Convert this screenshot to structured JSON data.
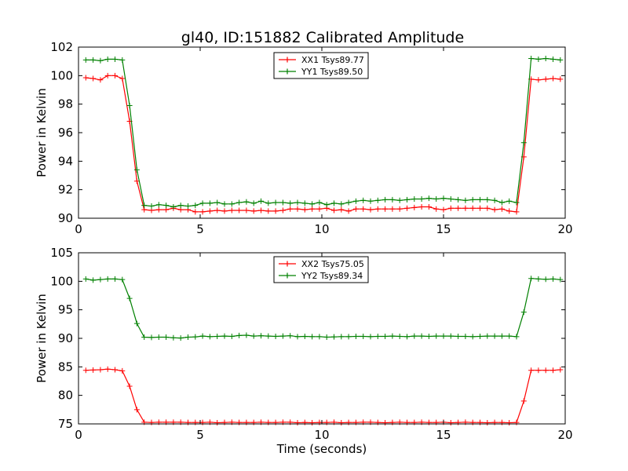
{
  "figure": {
    "title": "gl40, ID:151882 Calibrated Amplitude"
  },
  "chart_data": [
    {
      "type": "line",
      "title": "gl40, ID:151882 Calibrated Amplitude",
      "xlabel": "",
      "ylabel": "Power in Kelvin",
      "xlim": [
        0,
        20
      ],
      "ylim": [
        90,
        102
      ],
      "xticks": [
        "0",
        "5",
        "10",
        "15",
        "20"
      ],
      "yticks": [
        "90",
        "92",
        "94",
        "96",
        "98",
        "100",
        "102"
      ],
      "legend_position": "top-center",
      "x": [
        0.3,
        0.6,
        0.9,
        1.2,
        1.5,
        1.8,
        2.1,
        2.4,
        2.7,
        3.0,
        3.3,
        3.6,
        3.9,
        4.2,
        4.5,
        4.8,
        5.1,
        5.4,
        5.7,
        6.0,
        6.3,
        6.6,
        6.9,
        7.2,
        7.5,
        7.8,
        8.1,
        8.4,
        8.7,
        9.0,
        9.3,
        9.6,
        9.9,
        10.2,
        10.5,
        10.8,
        11.1,
        11.4,
        11.7,
        12.0,
        12.3,
        12.6,
        12.9,
        13.2,
        13.5,
        13.8,
        14.1,
        14.4,
        14.7,
        15.0,
        15.3,
        15.6,
        15.9,
        16.2,
        16.5,
        16.8,
        17.1,
        17.4,
        17.7,
        18.0,
        18.3,
        18.6,
        18.9,
        19.2,
        19.5,
        19.8
      ],
      "series": [
        {
          "name": "XX1 Tsys89.77",
          "color": "#ff0000",
          "values": [
            99.85,
            99.8,
            99.7,
            100.0,
            100.0,
            99.8,
            96.8,
            92.6,
            90.6,
            90.55,
            90.6,
            90.6,
            90.7,
            90.6,
            90.6,
            90.45,
            90.45,
            90.5,
            90.55,
            90.5,
            90.55,
            90.55,
            90.55,
            90.5,
            90.55,
            90.5,
            90.5,
            90.55,
            90.65,
            90.65,
            90.6,
            90.65,
            90.65,
            90.7,
            90.55,
            90.6,
            90.5,
            90.65,
            90.65,
            90.6,
            90.65,
            90.65,
            90.65,
            90.65,
            90.7,
            90.75,
            90.8,
            90.8,
            90.65,
            90.6,
            90.7,
            90.7,
            90.7,
            90.7,
            90.7,
            90.7,
            90.6,
            90.65,
            90.5,
            90.45,
            94.3,
            99.75,
            99.7,
            99.75,
            99.8,
            99.75
          ]
        },
        {
          "name": "YY1 Tsys89.50",
          "color": "#008000",
          "values": [
            101.1,
            101.1,
            101.05,
            101.15,
            101.15,
            101.1,
            97.9,
            93.4,
            90.9,
            90.85,
            90.95,
            90.9,
            90.8,
            90.9,
            90.85,
            90.9,
            91.05,
            91.05,
            91.1,
            91.0,
            91.0,
            91.1,
            91.15,
            91.05,
            91.2,
            91.05,
            91.1,
            91.1,
            91.05,
            91.1,
            91.05,
            91.0,
            91.1,
            90.95,
            91.05,
            91.0,
            91.1,
            91.2,
            91.25,
            91.2,
            91.25,
            91.3,
            91.3,
            91.25,
            91.3,
            91.35,
            91.35,
            91.4,
            91.35,
            91.4,
            91.35,
            91.3,
            91.25,
            91.3,
            91.3,
            91.3,
            91.25,
            91.1,
            91.2,
            91.1,
            95.3,
            101.2,
            101.15,
            101.2,
            101.15,
            101.1
          ]
        }
      ]
    },
    {
      "type": "line",
      "title": "",
      "xlabel": "Time (seconds)",
      "ylabel": "Power in Kelvin",
      "xlim": [
        0,
        20
      ],
      "ylim": [
        75,
        105
      ],
      "xticks": [
        "0",
        "5",
        "10",
        "15",
        "20"
      ],
      "yticks": [
        "75",
        "80",
        "85",
        "90",
        "95",
        "100",
        "105"
      ],
      "legend_position": "top-center",
      "x": [
        0.3,
        0.6,
        0.9,
        1.2,
        1.5,
        1.8,
        2.1,
        2.4,
        2.7,
        3.0,
        3.3,
        3.6,
        3.9,
        4.2,
        4.5,
        4.8,
        5.1,
        5.4,
        5.7,
        6.0,
        6.3,
        6.6,
        6.9,
        7.2,
        7.5,
        7.8,
        8.1,
        8.4,
        8.7,
        9.0,
        9.3,
        9.6,
        9.9,
        10.2,
        10.5,
        10.8,
        11.1,
        11.4,
        11.7,
        12.0,
        12.3,
        12.6,
        12.9,
        13.2,
        13.5,
        13.8,
        14.1,
        14.4,
        14.7,
        15.0,
        15.3,
        15.6,
        15.9,
        16.2,
        16.5,
        16.8,
        17.1,
        17.4,
        17.7,
        18.0,
        18.3,
        18.6,
        18.9,
        19.2,
        19.5,
        19.8
      ],
      "series": [
        {
          "name": "XX2 Tsys75.05",
          "color": "#ff0000",
          "values": [
            84.4,
            84.45,
            84.5,
            84.6,
            84.5,
            84.3,
            81.6,
            77.5,
            75.3,
            75.25,
            75.3,
            75.3,
            75.3,
            75.3,
            75.25,
            75.25,
            75.25,
            75.3,
            75.2,
            75.25,
            75.3,
            75.25,
            75.25,
            75.25,
            75.3,
            75.25,
            75.25,
            75.3,
            75.3,
            75.2,
            75.25,
            75.2,
            75.25,
            75.25,
            75.3,
            75.2,
            75.25,
            75.25,
            75.3,
            75.3,
            75.25,
            75.2,
            75.25,
            75.3,
            75.25,
            75.25,
            75.3,
            75.25,
            75.25,
            75.3,
            75.2,
            75.25,
            75.3,
            75.25,
            75.25,
            75.2,
            75.25,
            75.25,
            75.2,
            75.25,
            79.0,
            84.4,
            84.4,
            84.4,
            84.4,
            84.5
          ]
        },
        {
          "name": "YY2 Tsys89.34",
          "color": "#008000",
          "values": [
            100.4,
            100.2,
            100.3,
            100.4,
            100.4,
            100.3,
            97.0,
            92.6,
            90.2,
            90.15,
            90.2,
            90.2,
            90.1,
            90.05,
            90.2,
            90.25,
            90.4,
            90.3,
            90.35,
            90.4,
            90.35,
            90.5,
            90.55,
            90.4,
            90.45,
            90.4,
            90.35,
            90.4,
            90.45,
            90.3,
            90.35,
            90.3,
            90.3,
            90.2,
            90.25,
            90.3,
            90.3,
            90.35,
            90.35,
            90.3,
            90.35,
            90.35,
            90.4,
            90.35,
            90.3,
            90.4,
            90.4,
            90.35,
            90.4,
            90.4,
            90.4,
            90.35,
            90.35,
            90.3,
            90.35,
            90.4,
            90.4,
            90.4,
            90.4,
            90.3,
            94.6,
            100.5,
            100.4,
            100.35,
            100.4,
            100.3
          ]
        }
      ]
    }
  ]
}
